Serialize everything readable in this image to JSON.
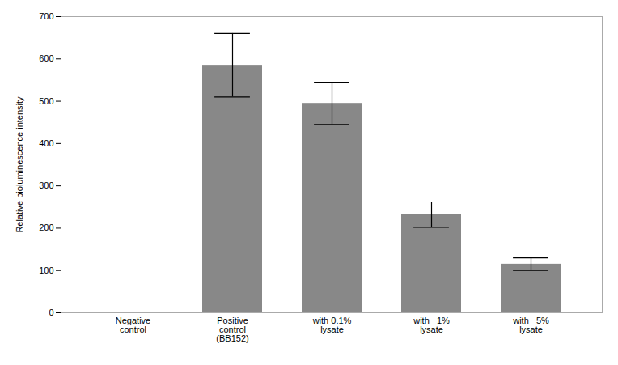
{
  "chart_data": {
    "type": "bar",
    "categories": [
      "Negative\ncontrol",
      "Positive\ncontrol\n(BB152)",
      "with 0.1%\nlysate",
      "with   1%\nlysate",
      "with   5%\nlysate"
    ],
    "values": [
      0,
      585,
      495,
      232,
      115
    ],
    "errors": [
      0,
      75,
      50,
      30,
      15
    ],
    "color": "#888888",
    "ylabel": "Relative bioluminescence intensity",
    "ylim": [
      0,
      700
    ],
    "yticks": [
      0,
      100,
      200,
      300,
      400,
      500,
      600,
      700
    ],
    "grid": false
  }
}
